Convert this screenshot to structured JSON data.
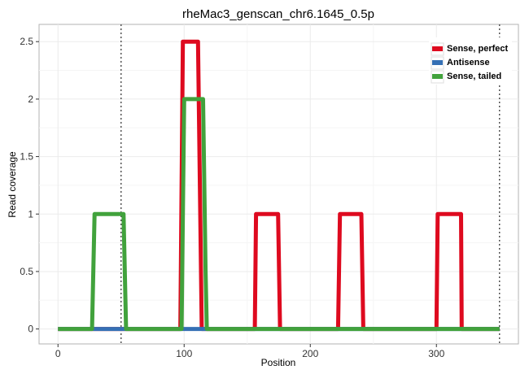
{
  "chart_data": {
    "type": "line",
    "title": "rheMac3_genscan_chr6.1645_0.5p",
    "xlabel": "Position",
    "ylabel": "Read coverage",
    "xlim": [
      -15,
      365
    ],
    "ylim": [
      -0.13,
      2.65
    ],
    "x_ticks": [
      0,
      100,
      200,
      300
    ],
    "x_tick_labels": [
      "0",
      "100",
      "200",
      "300"
    ],
    "y_ticks": [
      0,
      0.5,
      1,
      1.5,
      2,
      2.5
    ],
    "y_tick_labels": [
      "0",
      "0.5",
      "1",
      "1.5",
      "2",
      "2.5"
    ],
    "grid": true,
    "legend_position": "top-right",
    "vertical_reference_lines": [
      50,
      350
    ],
    "series": [
      {
        "name": "Sense, perfect",
        "color": "#de0a1f",
        "points": [
          [
            0,
            0
          ],
          [
            97,
            0
          ],
          [
            99,
            2.5
          ],
          [
            111,
            2.5
          ],
          [
            114,
            0
          ],
          [
            156,
            0
          ],
          [
            157,
            1
          ],
          [
            174.5,
            1
          ],
          [
            176,
            0
          ],
          [
            222,
            0
          ],
          [
            223.5,
            1
          ],
          [
            240.5,
            1
          ],
          [
            242,
            0
          ],
          [
            300,
            0
          ],
          [
            301,
            1
          ],
          [
            319.5,
            1
          ],
          [
            320,
            0
          ],
          [
            350,
            0
          ]
        ]
      },
      {
        "name": "Antisense",
        "color": "#3570b5",
        "points": [
          [
            0,
            0
          ],
          [
            350,
            0
          ]
        ]
      },
      {
        "name": "Sense, tailed",
        "color": "#41a23c",
        "points": [
          [
            0,
            0
          ],
          [
            27,
            0
          ],
          [
            29,
            1
          ],
          [
            52,
            1
          ],
          [
            54,
            0
          ],
          [
            98,
            0
          ],
          [
            100,
            2
          ],
          [
            115,
            2
          ],
          [
            117,
            0.5
          ],
          [
            118,
            0
          ],
          [
            350,
            0
          ]
        ]
      }
    ]
  }
}
